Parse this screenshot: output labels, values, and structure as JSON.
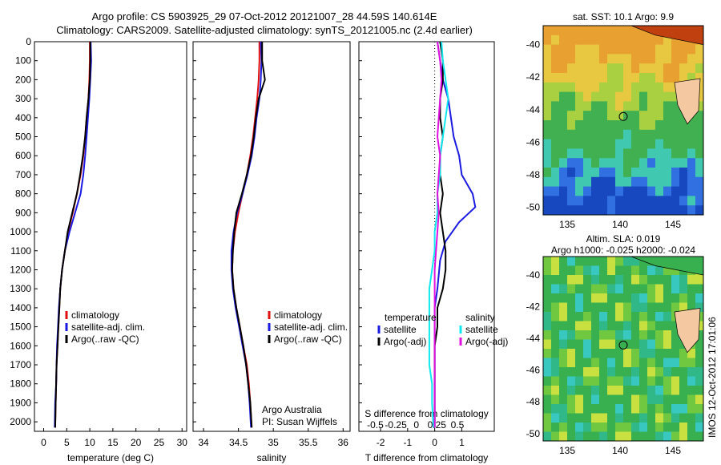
{
  "title": {
    "line1": "Argo profile: CS 5903925_29 07-Oct-2012 20121007_28 44.59S 140.614E",
    "line2": "Climatology: CARS2009. Satellite-adjusted climatology: synTS_20121005.nc (2.4d earlier)"
  },
  "colors": {
    "climatology": "#e01010",
    "satellite": "#1a1ae0",
    "argo": "#000000",
    "satellite_salinity": "#10e8f0",
    "argo_salinity": "#e010e0"
  },
  "chart_data": [
    {
      "id": "temperature",
      "type": "line",
      "xlabel": "temperature (deg C)",
      "ylabel": "",
      "xlim": [
        -2,
        31
      ],
      "ylim": [
        2050,
        0
      ],
      "xticks": [
        0,
        5,
        10,
        15,
        20,
        25,
        30
      ],
      "yticks": [
        0,
        100,
        200,
        300,
        400,
        500,
        600,
        700,
        800,
        900,
        1000,
        1100,
        1200,
        1300,
        1400,
        1500,
        1600,
        1700,
        1800,
        1900,
        2000
      ],
      "legend": [
        "climatology",
        "satellite-adj. clim.",
        "Argo(..raw -QC)"
      ],
      "series": [
        {
          "name": "climatology",
          "color": "#e01010",
          "x": [
            10.0,
            10.0,
            9.9,
            9.7,
            9.3,
            9.0,
            8.6,
            8.0,
            7.2,
            6.3,
            5.3,
            4.6,
            4.0,
            3.6,
            3.4,
            3.2,
            3.0,
            2.8,
            2.7,
            2.6,
            2.5
          ],
          "y": [
            0,
            100,
            200,
            300,
            400,
            500,
            600,
            700,
            800,
            900,
            1000,
            1100,
            1200,
            1300,
            1400,
            1500,
            1600,
            1700,
            1800,
            1900,
            2030
          ]
        },
        {
          "name": "satellite-adj. clim.",
          "color": "#1a1ae0",
          "x": [
            10.2,
            10.3,
            10.1,
            9.9,
            9.6,
            9.3,
            9.0,
            8.6,
            8.0,
            6.8,
            5.6,
            4.6,
            4.0,
            3.6,
            3.3,
            3.1,
            2.9,
            2.8,
            2.7,
            2.5,
            2.4
          ],
          "y": [
            0,
            100,
            200,
            300,
            400,
            500,
            600,
            700,
            800,
            900,
            1000,
            1100,
            1200,
            1300,
            1400,
            1500,
            1600,
            1700,
            1800,
            1900,
            2030
          ]
        },
        {
          "name": "Argo(..raw -QC)",
          "color": "#000000",
          "x": [
            10.1,
            10.1,
            10.0,
            9.7,
            9.3,
            9.0,
            8.5,
            7.9,
            7.2,
            6.2,
            5.2,
            4.6,
            4.0,
            3.6,
            3.4,
            3.2,
            3.0,
            2.8,
            2.7,
            2.6,
            2.5
          ],
          "y": [
            0,
            100,
            200,
            300,
            400,
            500,
            600,
            700,
            800,
            900,
            1000,
            1100,
            1200,
            1300,
            1400,
            1500,
            1600,
            1700,
            1800,
            1900,
            2030
          ]
        }
      ]
    },
    {
      "id": "salinity",
      "type": "line",
      "xlabel": "salinity",
      "ylabel": "",
      "xlim": [
        33.85,
        36.1
      ],
      "ylim": [
        2050,
        0
      ],
      "xticks": [
        34,
        34.5,
        35,
        35.5,
        36
      ],
      "xticklabels": [
        "34",
        "34.5",
        "35",
        "35.5",
        "36"
      ],
      "legend": [
        "climatology",
        "satellite-adj. clim.",
        "Argo(..raw -QC)"
      ],
      "annotation": [
        "Argo Australia",
        "PI: Susan Wijffels"
      ],
      "series": [
        {
          "name": "climatology",
          "color": "#e01010",
          "x": [
            34.8,
            34.8,
            34.79,
            34.77,
            34.74,
            34.71,
            34.67,
            34.62,
            34.56,
            34.5,
            34.45,
            34.42,
            34.41,
            34.43,
            34.47,
            34.52,
            34.57,
            34.62,
            34.65,
            34.67,
            34.69
          ],
          "y": [
            0,
            100,
            200,
            300,
            400,
            500,
            600,
            700,
            800,
            900,
            1000,
            1100,
            1200,
            1300,
            1400,
            1500,
            1600,
            1700,
            1800,
            1900,
            2030
          ]
        },
        {
          "name": "satellite-adj. clim.",
          "color": "#1a1ae0",
          "x": [
            34.82,
            34.83,
            34.82,
            34.8,
            34.76,
            34.73,
            34.69,
            34.63,
            34.56,
            34.48,
            34.43,
            34.4,
            34.4,
            34.42,
            34.46,
            34.51,
            34.56,
            34.61,
            34.64,
            34.66,
            34.68
          ],
          "y": [
            0,
            100,
            200,
            300,
            400,
            500,
            600,
            700,
            800,
            900,
            1000,
            1100,
            1200,
            1300,
            1400,
            1500,
            1600,
            1700,
            1800,
            1900,
            2030
          ]
        },
        {
          "name": "Argo(..raw -QC)",
          "color": "#000000",
          "x": [
            34.84,
            34.84,
            34.88,
            34.79,
            34.75,
            34.72,
            34.68,
            34.62,
            34.55,
            34.47,
            34.44,
            34.42,
            34.41,
            34.43,
            34.47,
            34.52,
            34.57,
            34.61,
            34.64,
            34.67,
            34.69
          ],
          "y": [
            0,
            100,
            200,
            300,
            400,
            500,
            600,
            700,
            800,
            900,
            1000,
            1100,
            1200,
            1300,
            1400,
            1500,
            1600,
            1700,
            1800,
            1900,
            2030
          ]
        }
      ]
    },
    {
      "id": "difference",
      "type": "line",
      "xlabel": "T difference from climatology",
      "top_label": "S difference from climatology",
      "xlim": [
        -2.8,
        2.2
      ],
      "ylim": [
        2050,
        0
      ],
      "xticks": [
        -2,
        -1,
        0,
        1
      ],
      "xticklabels": [
        "-2",
        "-1",
        "0",
        "1"
      ],
      "sticks": [
        -0.5,
        -0.25,
        0,
        0.25,
        0.5
      ],
      "sticklabels": [
        "-0.5",
        "-0.25",
        "0",
        "0.25",
        "0.5"
      ],
      "legend": {
        "temperature_heading": "temperature",
        "salinity_heading": "salinity",
        "items": [
          "satellite",
          "Argo(-adj)",
          "satellite",
          "Argo(-adj)"
        ]
      },
      "series": [
        {
          "name": "T satellite",
          "color": "#1a1ae0",
          "x": [
            0.1,
            0.2,
            0.3,
            0.5,
            0.6,
            0.7,
            0.9,
            1.0,
            1.4,
            1.5,
            0.9,
            0.4,
            0.2,
            0.1,
            0.0,
            0.0,
            0.0,
            0.0,
            0.0,
            0.0,
            0.0
          ],
          "y": [
            0,
            100,
            200,
            300,
            400,
            500,
            600,
            700,
            800,
            870,
            950,
            1050,
            1150,
            1300,
            1400,
            1500,
            1600,
            1700,
            1800,
            1900,
            2030
          ]
        },
        {
          "name": "T Argo(-adj)",
          "color": "#000000",
          "x": [
            0.2,
            0.3,
            0.3,
            0.2,
            0.2,
            0.3,
            0.2,
            0.2,
            0.3,
            0.2,
            0.3,
            0.4,
            0.4,
            0.3,
            0.1,
            0.1,
            0.0,
            0.0,
            0.0,
            0.0,
            0.0
          ],
          "y": [
            0,
            100,
            200,
            300,
            400,
            500,
            600,
            700,
            800,
            900,
            1000,
            1100,
            1200,
            1300,
            1400,
            1500,
            1600,
            1700,
            1800,
            1900,
            2030
          ]
        },
        {
          "name": "S satellite",
          "color": "#10e8f0",
          "x": [
            0.25,
            0.3,
            0.4,
            0.5,
            0.4,
            0.3,
            0.2,
            0.2,
            0.1,
            0.1,
            0.0,
            0.0,
            -0.1,
            -0.2,
            -0.2,
            -0.2,
            -0.2,
            -0.2,
            -0.1,
            -0.1,
            -0.05
          ],
          "y": [
            0,
            100,
            200,
            300,
            400,
            500,
            600,
            700,
            800,
            900,
            1000,
            1100,
            1200,
            1300,
            1400,
            1500,
            1600,
            1700,
            1800,
            1900,
            2030
          ]
        },
        {
          "name": "S Argo(-adj)",
          "color": "#e010e0",
          "x": [
            0.1,
            0.2,
            0.25,
            0.2,
            0.15,
            0.1,
            0.2,
            0.15,
            0.1,
            0.15,
            0.1,
            0.05,
            0.0,
            0.0,
            0.0,
            0.0,
            0.0,
            0.0,
            0.0,
            0.0,
            0.0
          ],
          "y": [
            0,
            100,
            200,
            300,
            400,
            500,
            600,
            700,
            800,
            900,
            1000,
            1100,
            1200,
            1300,
            1400,
            1500,
            1600,
            1700,
            1800,
            1900,
            2030
          ]
        }
      ]
    }
  ],
  "maps": {
    "sst": {
      "title": "sat. SST: 10.1 Argo: 9.9",
      "xticks": [
        "135",
        "140",
        "145"
      ],
      "yticks": [
        "-40",
        "-42",
        "-44",
        "-46",
        "-48",
        "-50"
      ]
    },
    "sla": {
      "title1": "Altim. SLA: 0.019",
      "title2": "Argo h1000: -0.025 h2000: -0.024",
      "xticks": [
        "135",
        "140",
        "145"
      ],
      "yticks": [
        "-40",
        "-42",
        "-44",
        "-46",
        "-48",
        "-50"
      ]
    }
  },
  "watermark": "IMOS 12-Oct-2012 17:01:06"
}
